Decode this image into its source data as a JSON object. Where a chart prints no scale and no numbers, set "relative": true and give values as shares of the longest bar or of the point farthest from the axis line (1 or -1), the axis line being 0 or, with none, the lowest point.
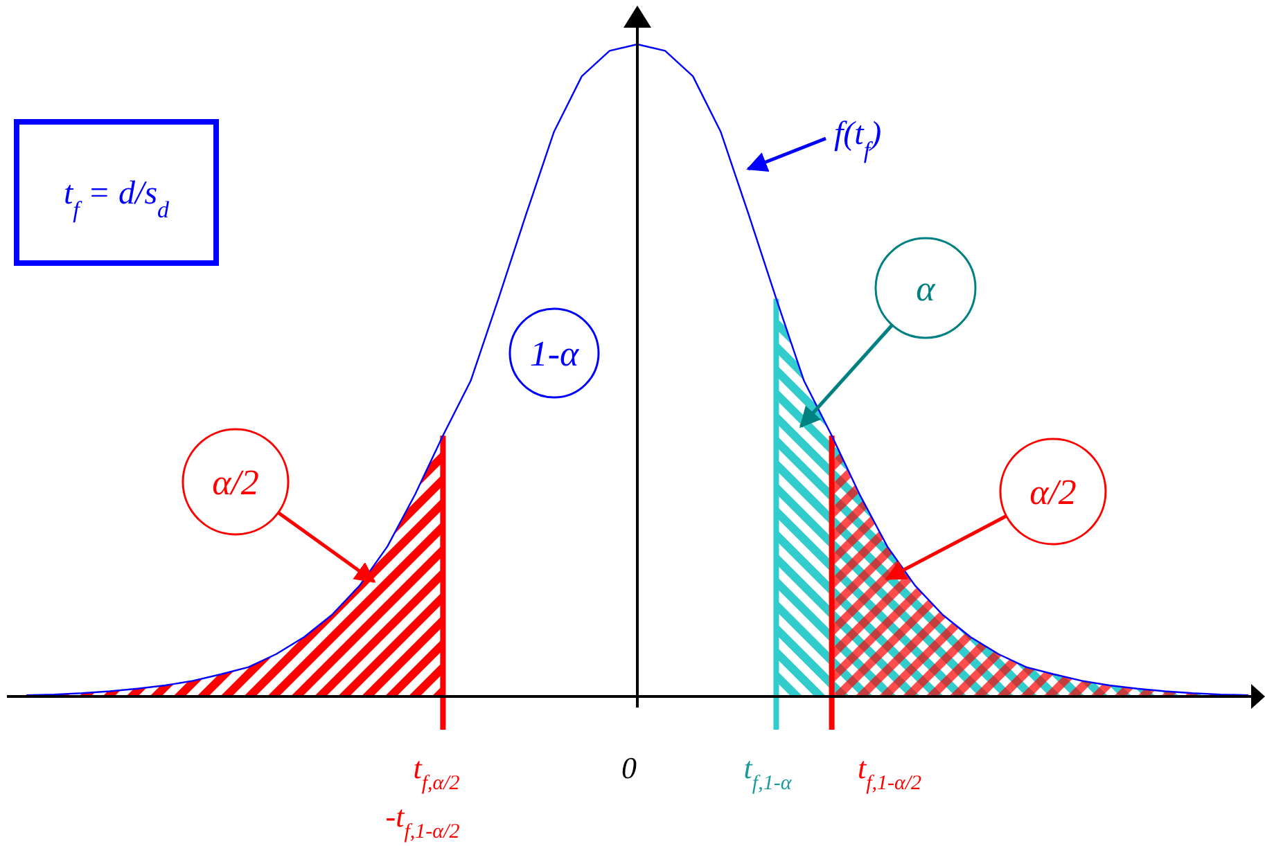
{
  "chart_data": {
    "type": "line",
    "relative": true,
    "categories": [
      null,
      null,
      null,
      null,
      null,
      null,
      null,
      null,
      null,
      null,
      null,
      null,
      null,
      null,
      null,
      null,
      null,
      null,
      null,
      null,
      null,
      null,
      null,
      null,
      null,
      null,
      null,
      null,
      null,
      null,
      null,
      null,
      null,
      null,
      null,
      null,
      null,
      null,
      null,
      null,
      null,
      null,
      null,
      null,
      null
    ],
    "series": [
      {
        "name": "f(t$_{f}$)",
        "color": "#0000ff",
        "values": [
          0.002,
          0.003,
          0.005,
          0.008,
          0.012,
          0.017,
          0.024,
          0.034,
          0.045,
          0.065,
          0.091,
          0.125,
          0.17,
          0.23,
          0.31,
          0.4,
          0.484,
          0.61,
          0.74,
          0.866,
          0.951,
          0.99,
          1,
          0.99,
          0.951,
          0.866,
          0.74,
          0.61,
          0.484,
          0.4,
          0.31,
          0.23,
          0.17,
          0.125,
          0.091,
          0.065,
          0.045,
          0.034,
          0.024,
          0.017,
          0.012,
          0.008,
          0.005,
          0.003,
          0.002
        ]
      },
      {
        "type": "area",
        "color": "#ff0000",
        "values": [
          0.002,
          0.003,
          0.005,
          0.008,
          0.012,
          0.017,
          0.024,
          0.034,
          0.045,
          0.065,
          0.091,
          0.125,
          0.17,
          0.23,
          0.31,
          0.4,
          null,
          null,
          null,
          null,
          null,
          null,
          null,
          null,
          null,
          null,
          null,
          null,
          null,
          null,
          null,
          null,
          null,
          null,
          null,
          null,
          null,
          null,
          null,
          null,
          null,
          null,
          null,
          null,
          null
        ]
      },
      {
        "type": "area",
        "color": "#33cccc",
        "values": [
          null,
          null,
          null,
          null,
          null,
          null,
          null,
          null,
          null,
          null,
          null,
          null,
          null,
          null,
          null,
          null,
          null,
          null,
          null,
          null,
          null,
          null,
          null,
          null,
          null,
          null,
          null,
          0.61,
          0.484,
          0.4,
          0.31,
          0.23,
          0.17,
          0.125,
          0.091,
          0.065,
          0.045,
          0.034,
          0.024,
          0.017,
          0.012,
          0.008,
          0.005,
          0.003,
          0.002
        ]
      },
      {
        "type": "area",
        "color": "#ff0000",
        "values": [
          null,
          null,
          null,
          null,
          null,
          null,
          null,
          null,
          null,
          null,
          null,
          null,
          null,
          null,
          null,
          null,
          null,
          null,
          null,
          null,
          null,
          null,
          null,
          null,
          null,
          null,
          null,
          null,
          null,
          0.4,
          0.31,
          0.23,
          0.17,
          0.125,
          0.091,
          0.065,
          0.045,
          0.034,
          0.024,
          0.017,
          0.012,
          0.008,
          0.005,
          0.003,
          0.002
        ]
      }
    ],
    "line_style": "solid",
    "marker": "none",
    "grid": false,
    "annotations": [
      "α/2",
      "1-α",
      "α",
      "α/2",
      "t$_{f}$ = d/s$_{d}$",
      "t$_{f,α/2}$",
      "-t$_{f,1-α/2}$",
      "0",
      "t$_{f,1-α}$",
      "t$_{f,1-α/2}$"
    ]
  }
}
